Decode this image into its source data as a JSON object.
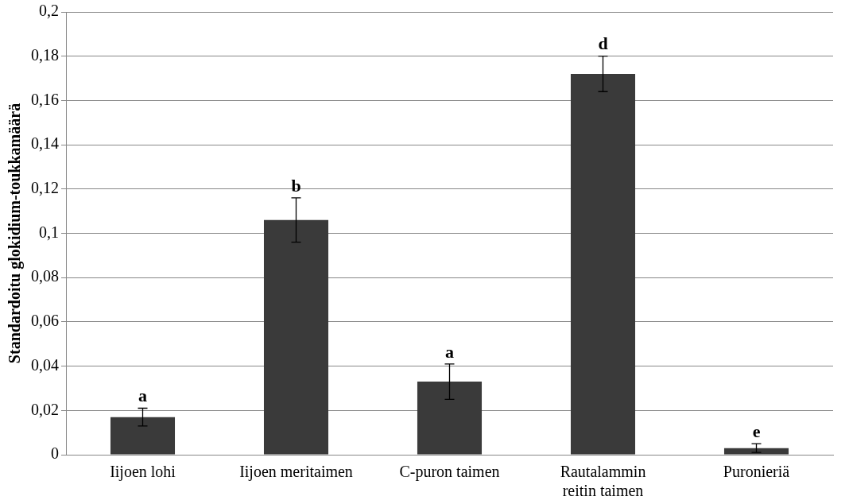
{
  "chart_data": {
    "type": "bar",
    "ylabel": "Standardoitu glokidium-toukkamäärä",
    "categories": [
      "Iijoen lohi",
      "Iijoen meritaimen",
      "C-puron taimen",
      "Rautalammin reitin taimen",
      "Puronieriä"
    ],
    "values": [
      0.017,
      0.106,
      0.033,
      0.172,
      0.003
    ],
    "errors": [
      0.004,
      0.01,
      0.008,
      0.008,
      0.002
    ],
    "color": "#3a3a3a",
    "ylim": [
      0,
      0.2
    ],
    "yticks": [
      0,
      {
        "value": 0.02,
        "label": "0,02"
      },
      {
        "value": 0.04,
        "label": "0,04"
      },
      {
        "value": 0.06,
        "label": "0,06"
      },
      {
        "value": 0.08,
        "label": "0,08"
      },
      {
        "value": 0.1,
        "label": "0,1"
      },
      {
        "value": 0.12,
        "label": "0,12"
      },
      {
        "value": 0.14,
        "label": "0,14"
      },
      {
        "value": 0.16,
        "label": "0,16"
      },
      {
        "value": 0.18,
        "label": "0,18"
      },
      {
        "value": 0.2,
        "label": "0,2"
      }
    ],
    "grid": "y",
    "annotations": [
      {
        "text": "a",
        "x": "Iijoen lohi",
        "y": 0.021
      },
      {
        "text": "b",
        "x": "Iijoen meritaimen",
        "y": 0.116
      },
      {
        "text": "a",
        "x": "C-puron taimen",
        "y": 0.041
      },
      {
        "text": "d",
        "x": "Rautalammin reitin taimen",
        "y": 0.18
      },
      {
        "text": "e",
        "x": "Puronieriä",
        "y": 0.005
      }
    ]
  }
}
